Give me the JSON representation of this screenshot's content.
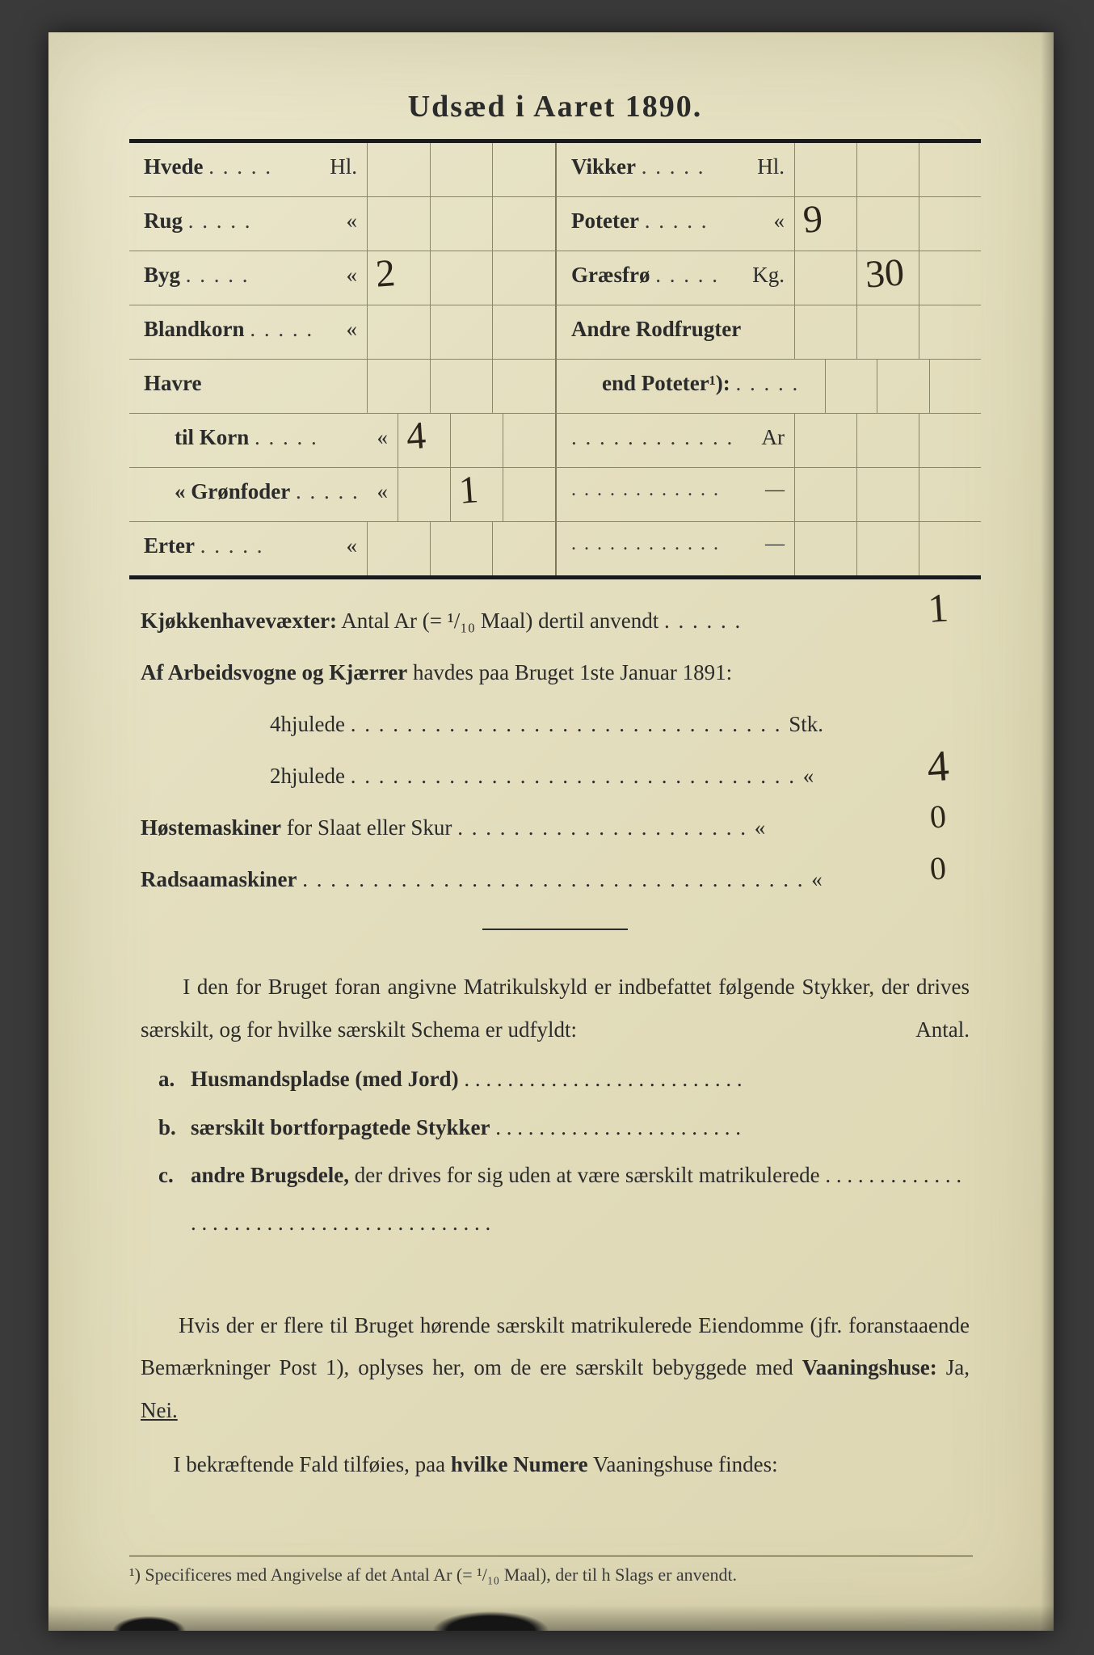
{
  "title": "Udsæd i Aaret 1890.",
  "colors": {
    "paper_bg_light": "#ebe7cd",
    "paper_bg_mid": "#e4dfbf",
    "paper_bg_dark": "#ddd6b2",
    "ink": "#2b2b2b",
    "rule_strong": "#1a1a1a",
    "rule_light": "#8a8668",
    "handwriting": "#2b241a",
    "scan_bg": "#2a2a2a"
  },
  "typography": {
    "title_pt": 28,
    "body_pt": 20,
    "footnote_pt": 16,
    "hand_pt": 36,
    "family_print": "serif",
    "family_hand": "cursive"
  },
  "sowing_table": {
    "left": [
      {
        "label": "Hvede",
        "unit": "Hl.",
        "values": [
          "",
          "",
          ""
        ]
      },
      {
        "label": "Rug",
        "unit": "«",
        "values": [
          "",
          "",
          ""
        ]
      },
      {
        "label": "Byg",
        "unit": "«",
        "values": [
          "2",
          "",
          ""
        ]
      },
      {
        "label": "Blandkorn",
        "unit": "«",
        "values": [
          "",
          "",
          ""
        ]
      },
      {
        "label": "Havre",
        "unit": "",
        "header": true,
        "values": [
          "",
          "",
          ""
        ]
      },
      {
        "label": "til Korn",
        "unit": "«",
        "indent": true,
        "values": [
          "4",
          "",
          ""
        ]
      },
      {
        "label": "« Grønfoder",
        "unit": "«",
        "indent": true,
        "values": [
          "",
          "1",
          ""
        ]
      },
      {
        "label": "Erter",
        "unit": "«",
        "values": [
          "",
          "",
          ""
        ]
      }
    ],
    "right": [
      {
        "label": "Vikker",
        "unit": "Hl.",
        "values": [
          "",
          "",
          ""
        ]
      },
      {
        "label": "Poteter",
        "unit": "«",
        "values": [
          "9",
          "",
          ""
        ]
      },
      {
        "label": "Græsfrø",
        "unit": "Kg.",
        "values": [
          "",
          "30",
          ""
        ]
      },
      {
        "label": "Andre Rodfrugter",
        "unit": "",
        "header": true,
        "values": [
          "",
          "",
          ""
        ]
      },
      {
        "label": "end Poteter¹):",
        "unit": "",
        "indent": true,
        "values": [
          "",
          "",
          ""
        ]
      },
      {
        "label": "",
        "unit": "Ar",
        "dotsOnly": true,
        "values": [
          "",
          "",
          ""
        ]
      },
      {
        "label": "",
        "unit": "—",
        "dotsOnly": true,
        "values": [
          "",
          "",
          ""
        ]
      },
      {
        "label": "",
        "unit": "—",
        "dotsOnly": true,
        "values": [
          "",
          "",
          ""
        ]
      }
    ],
    "cells_per_row": 3
  },
  "kjokkenhave": {
    "label": "Kjøkkenhavevæxter:",
    "text": "Antal Ar (= ¹/₁₀ Maal) dertil anvendt",
    "value": "1"
  },
  "vogner": {
    "intro_label": "Af Arbeidsvogne og Kjærrer",
    "intro_text": "havdes paa Bruget 1ste Januar 1891:",
    "fourwheel_label": "4hjulede",
    "fourwheel_unit": "Stk.",
    "fourwheel_value": "",
    "twowheel_label": "2hjulede",
    "twowheel_unit": "«",
    "twowheel_value": "4"
  },
  "hostemaskiner": {
    "label": "Høstemaskiner",
    "text": "for Slaat eller Skur",
    "unit": "«",
    "value": "0"
  },
  "radsaa": {
    "label": "Radsaamaskiner",
    "unit": "«",
    "value": "0"
  },
  "section_intro": "I den for Bruget foran angivne Matrikulskyld er indbefattet følgende Stykker, der drives særskilt, og for hvilke særskilt Schema er udfyldt:",
  "antal_label": "Antal.",
  "enum": {
    "a": {
      "lit": "a.",
      "bold": "Husmandspladse (med Jord)"
    },
    "b": {
      "lit": "b.",
      "bold": "særskilt bortforpagtede Stykker"
    },
    "c": {
      "lit": "c.",
      "bold": "andre Brugsdele,",
      "tail": "der drives for sig uden at være særskilt matrikulerede"
    }
  },
  "eiendom_para": "Hvis der er flere til Bruget hørende særskilt matrikulerede Eiendomme (jfr. foranstaaende Bemærkninger Post 1), oplyses her, om de ere særskilt bebyggede med",
  "vaaningshuse_label": "Vaaningshuse:",
  "ja": "Ja,",
  "nei": "Nei.",
  "confirm_line_a": "I bekræftende Fald tilføies, paa",
  "confirm_line_b": "hvilke Numere",
  "confirm_line_c": "Vaaningshuse findes:",
  "footnote": "¹) Specificeres med Angivelse af det Antal Ar (= ¹/₁₀ Maal), der til h     Slags er anvendt."
}
